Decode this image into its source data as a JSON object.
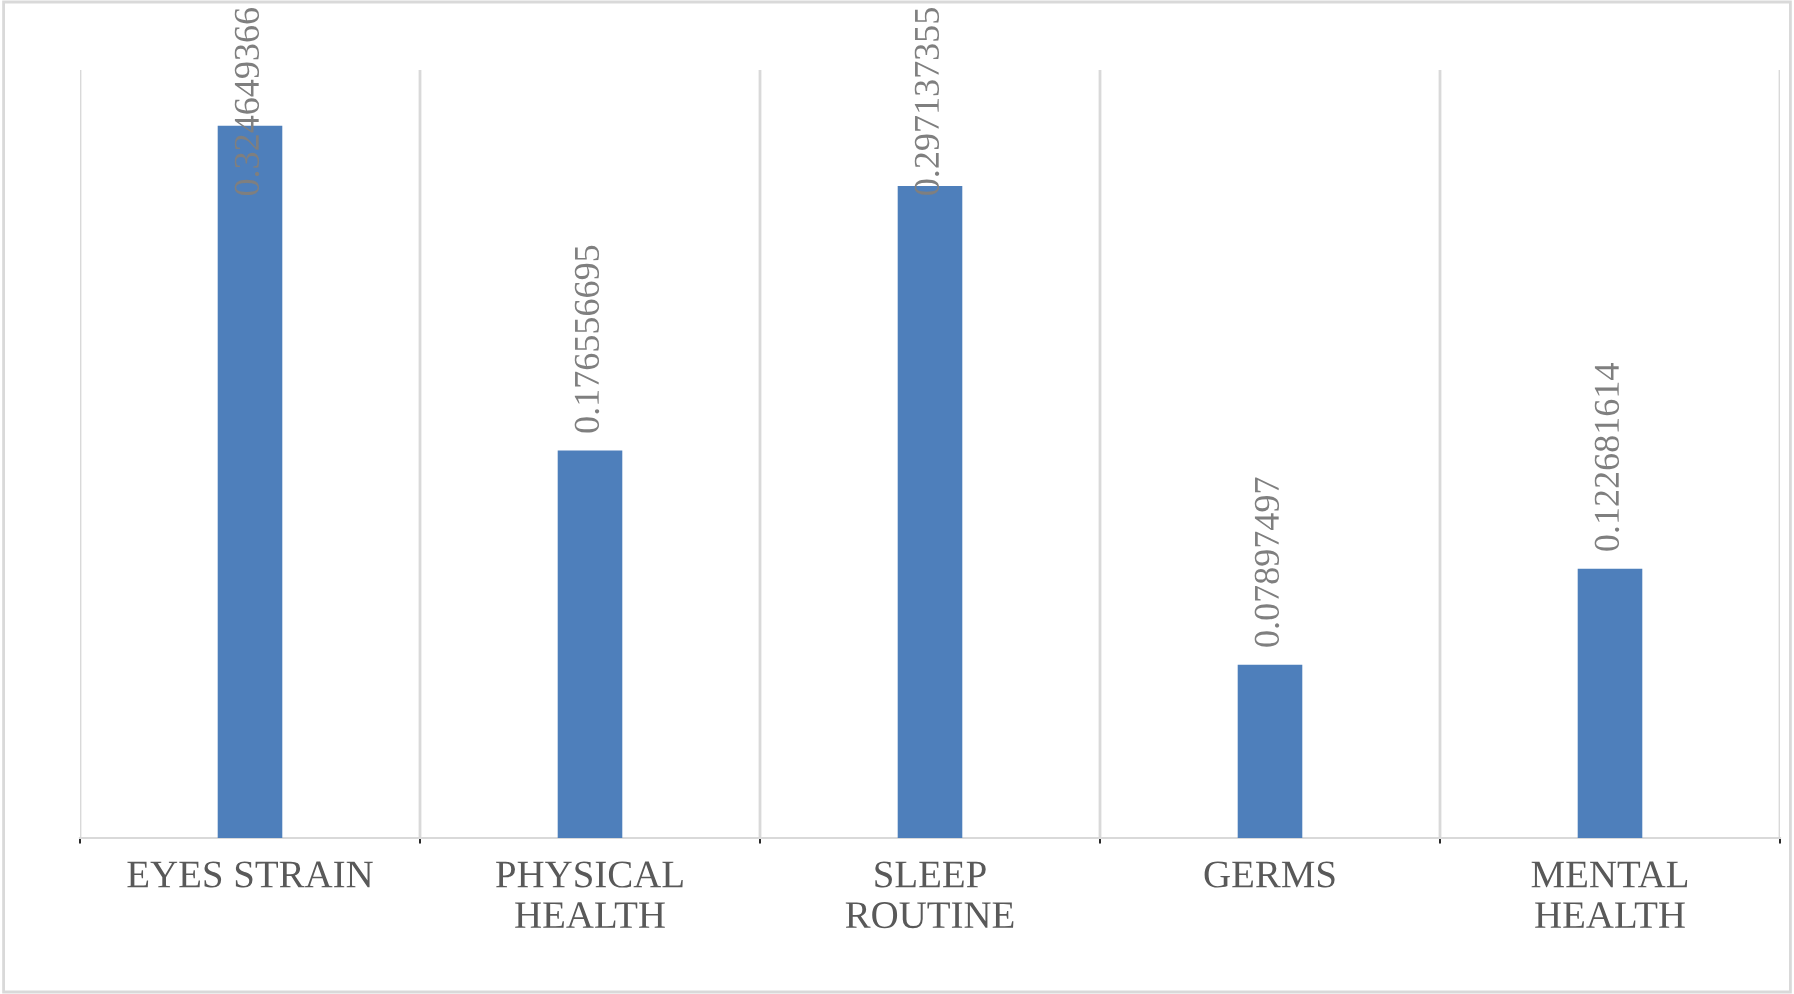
{
  "chart_data": {
    "type": "bar",
    "categories": [
      "EYES STRAIN",
      "PHYSICAL\nHEALTH",
      "SLEEP\nROUTINE",
      "GERMS",
      "MENTAL\nHEALTH"
    ],
    "values": [
      0.324649366,
      0.176556695,
      0.297137355,
      0.07897497,
      0.122681614
    ],
    "color": "#4e7fbb",
    "ylim": [
      0,
      0.35
    ],
    "tick_labels": "x",
    "grid": "x",
    "data_labels": true
  }
}
